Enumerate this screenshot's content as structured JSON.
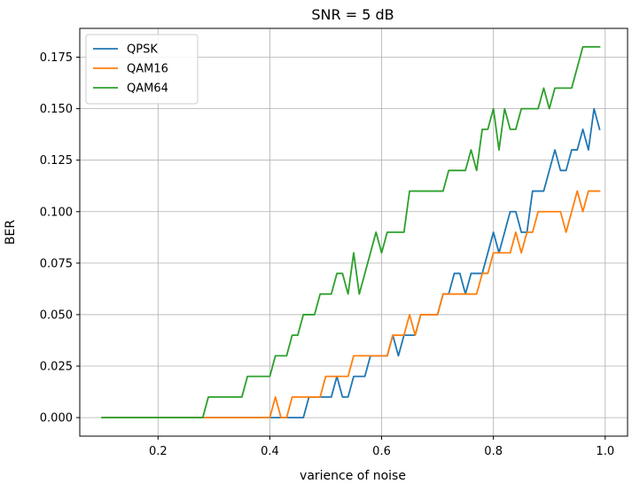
{
  "chart_data": {
    "type": "line",
    "title": "SNR = 5 dB",
    "xlabel": "varience of noise",
    "ylabel": "BER",
    "xlim": [
      0.06,
      1.04
    ],
    "ylim": [
      -0.009,
      0.189
    ],
    "xticks": [
      0.2,
      0.4,
      0.6,
      0.8,
      1.0
    ],
    "xtick_labels": [
      "0.2",
      "0.4",
      "0.6",
      "0.8",
      "1.0"
    ],
    "yticks": [
      0,
      0.025,
      0.05,
      0.075,
      0.1,
      0.125,
      0.15,
      0.175
    ],
    "ytick_labels": [
      "0.000",
      "0.025",
      "0.050",
      "0.075",
      "0.100",
      "0.125",
      "0.150",
      "0.175"
    ],
    "grid": true,
    "legend_position": "top-left",
    "x": [
      0.1,
      0.11,
      0.12,
      0.13,
      0.14,
      0.15,
      0.16,
      0.17,
      0.18,
      0.19,
      0.2,
      0.21,
      0.22,
      0.23,
      0.24,
      0.25,
      0.26,
      0.27,
      0.28,
      0.29,
      0.3,
      0.31,
      0.32,
      0.33,
      0.34,
      0.35,
      0.36,
      0.37,
      0.38,
      0.39,
      0.4,
      0.41,
      0.42,
      0.43,
      0.44,
      0.45,
      0.46,
      0.47,
      0.48,
      0.49,
      0.5,
      0.51,
      0.52,
      0.53,
      0.54,
      0.55,
      0.56,
      0.57,
      0.58,
      0.59,
      0.6,
      0.61,
      0.62,
      0.63,
      0.64,
      0.65,
      0.66,
      0.67,
      0.68,
      0.69,
      0.7,
      0.71,
      0.72,
      0.73,
      0.74,
      0.75,
      0.76,
      0.77,
      0.78,
      0.79,
      0.8,
      0.81,
      0.82,
      0.83,
      0.84,
      0.85,
      0.86,
      0.87,
      0.88,
      0.89,
      0.9,
      0.91,
      0.92,
      0.93,
      0.94,
      0.95,
      0.96,
      0.97,
      0.98,
      0.99
    ],
    "series": [
      {
        "name": "QPSK",
        "color": "#1f77b4",
        "values": [
          0,
          0,
          0,
          0,
          0,
          0,
          0,
          0,
          0,
          0,
          0,
          0,
          0,
          0,
          0,
          0,
          0,
          0,
          0,
          0,
          0,
          0,
          0,
          0,
          0,
          0,
          0,
          0,
          0,
          0,
          0,
          0,
          0,
          0,
          0,
          0,
          0,
          0.01,
          0.01,
          0.01,
          0.01,
          0.01,
          0.02,
          0.01,
          0.01,
          0.02,
          0.02,
          0.02,
          0.03,
          0.03,
          0.03,
          0.03,
          0.04,
          0.03,
          0.04,
          0.04,
          0.04,
          0.05,
          0.05,
          0.05,
          0.05,
          0.06,
          0.06,
          0.07,
          0.07,
          0.06,
          0.07,
          0.07,
          0.07,
          0.08,
          0.09,
          0.08,
          0.09,
          0.1,
          0.1,
          0.09,
          0.09,
          0.11,
          0.11,
          0.11,
          0.12,
          0.13,
          0.12,
          0.12,
          0.13,
          0.13,
          0.14,
          0.13,
          0.15,
          0.14
        ]
      },
      {
        "name": "QAM16",
        "color": "#ff7f0e",
        "values": [
          0,
          0,
          0,
          0,
          0,
          0,
          0,
          0,
          0,
          0,
          0,
          0,
          0,
          0,
          0,
          0,
          0,
          0,
          0,
          0,
          0,
          0,
          0,
          0,
          0,
          0,
          0,
          0,
          0,
          0,
          0,
          0.01,
          0,
          0,
          0.01,
          0.01,
          0.01,
          0.01,
          0.01,
          0.01,
          0.02,
          0.02,
          0.02,
          0.02,
          0.02,
          0.03,
          0.03,
          0.03,
          0.03,
          0.03,
          0.03,
          0.03,
          0.04,
          0.04,
          0.04,
          0.05,
          0.04,
          0.05,
          0.05,
          0.05,
          0.05,
          0.06,
          0.06,
          0.06,
          0.06,
          0.06,
          0.06,
          0.06,
          0.07,
          0.07,
          0.08,
          0.08,
          0.08,
          0.08,
          0.09,
          0.08,
          0.09,
          0.09,
          0.1,
          0.1,
          0.1,
          0.1,
          0.1,
          0.09,
          0.1,
          0.11,
          0.1,
          0.11,
          0.11,
          0.11
        ]
      },
      {
        "name": "QAM64",
        "color": "#2ca02c",
        "values": [
          0,
          0,
          0,
          0,
          0,
          0,
          0,
          0,
          0,
          0,
          0,
          0,
          0,
          0,
          0,
          0,
          0,
          0,
          0,
          0.01,
          0.01,
          0.01,
          0.01,
          0.01,
          0.01,
          0.01,
          0.02,
          0.02,
          0.02,
          0.02,
          0.02,
          0.03,
          0.03,
          0.03,
          0.04,
          0.04,
          0.05,
          0.05,
          0.05,
          0.06,
          0.06,
          0.06,
          0.07,
          0.07,
          0.06,
          0.08,
          0.06,
          0.07,
          0.08,
          0.09,
          0.08,
          0.09,
          0.09,
          0.09,
          0.09,
          0.11,
          0.11,
          0.11,
          0.11,
          0.11,
          0.11,
          0.11,
          0.12,
          0.12,
          0.12,
          0.12,
          0.13,
          0.12,
          0.14,
          0.14,
          0.15,
          0.13,
          0.15,
          0.14,
          0.14,
          0.15,
          0.15,
          0.15,
          0.15,
          0.16,
          0.15,
          0.16,
          0.16,
          0.16,
          0.16,
          0.17,
          0.18,
          0.18,
          0.18,
          0.18
        ]
      }
    ]
  }
}
